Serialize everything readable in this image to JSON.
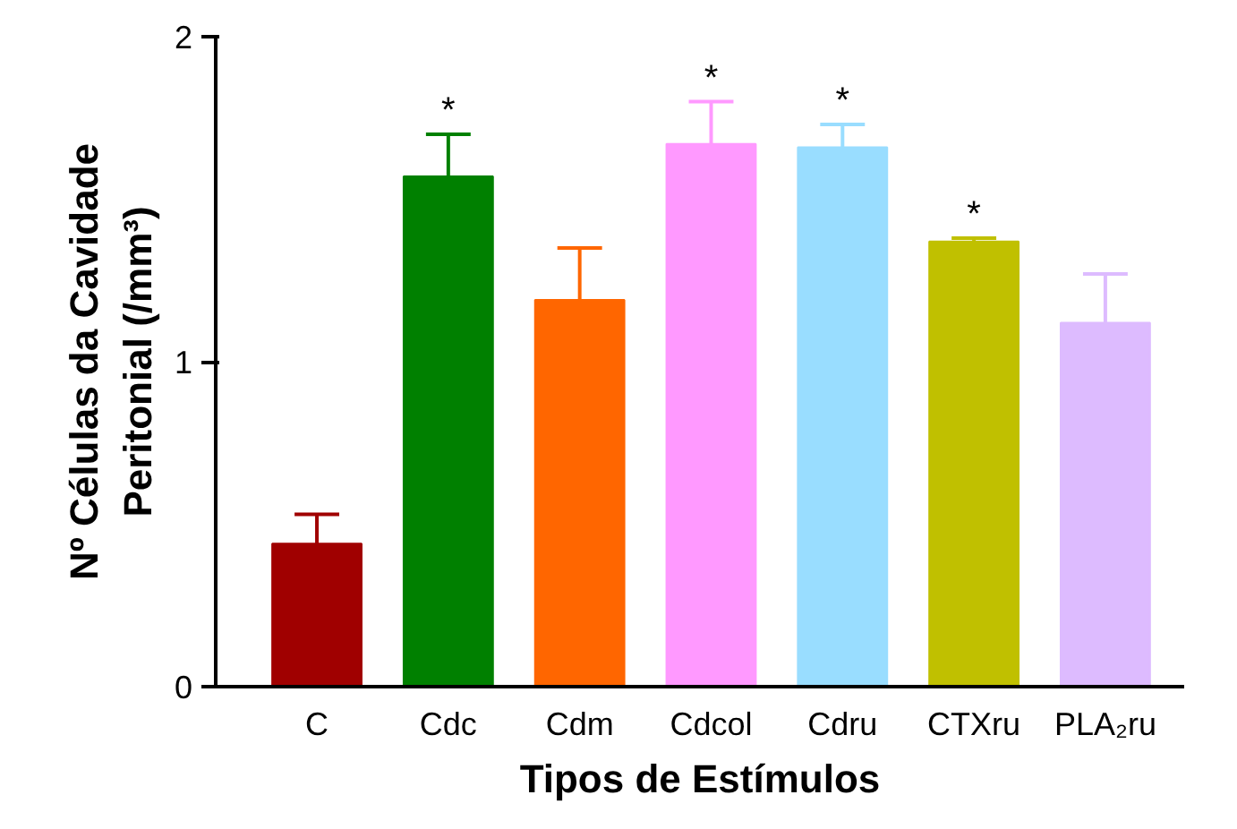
{
  "chart_data": {
    "type": "bar",
    "xlabel": "Tipos de Estímulos",
    "ylabel": "Nº Células da Cavidade\nPeritonial (/mm³)",
    "categories": [
      "C",
      "Cdc",
      "Cdm",
      "Cdcol",
      "Cdru",
      "CTXru",
      "PLA₂ru"
    ],
    "values": [
      0.44,
      1.57,
      1.19,
      1.67,
      1.66,
      1.37,
      1.12
    ],
    "colors": [
      "#a00000",
      "#008000",
      "#ff6600",
      "#ff99ff",
      "#99ddff",
      "#c0c000",
      "#ddbbff"
    ],
    "errors": [
      [
        0.44,
        0.53
      ],
      [
        1.57,
        1.7
      ],
      [
        1.19,
        1.35
      ],
      [
        1.67,
        1.8
      ],
      [
        1.66,
        1.73
      ],
      [
        1.37,
        1.38
      ],
      [
        1.12,
        1.27
      ]
    ],
    "ylim": [
      0,
      2
    ],
    "yticks": [
      0,
      1,
      2
    ],
    "grid": false,
    "annotations": [
      {
        "text": "*",
        "x": "Cdc",
        "y": 1.7
      },
      {
        "text": "*",
        "x": "Cdcol",
        "y": 1.8
      },
      {
        "text": "*",
        "x": "Cdru",
        "y": 1.73
      },
      {
        "text": "*",
        "x": "CTXru",
        "y": 1.38
      }
    ]
  }
}
